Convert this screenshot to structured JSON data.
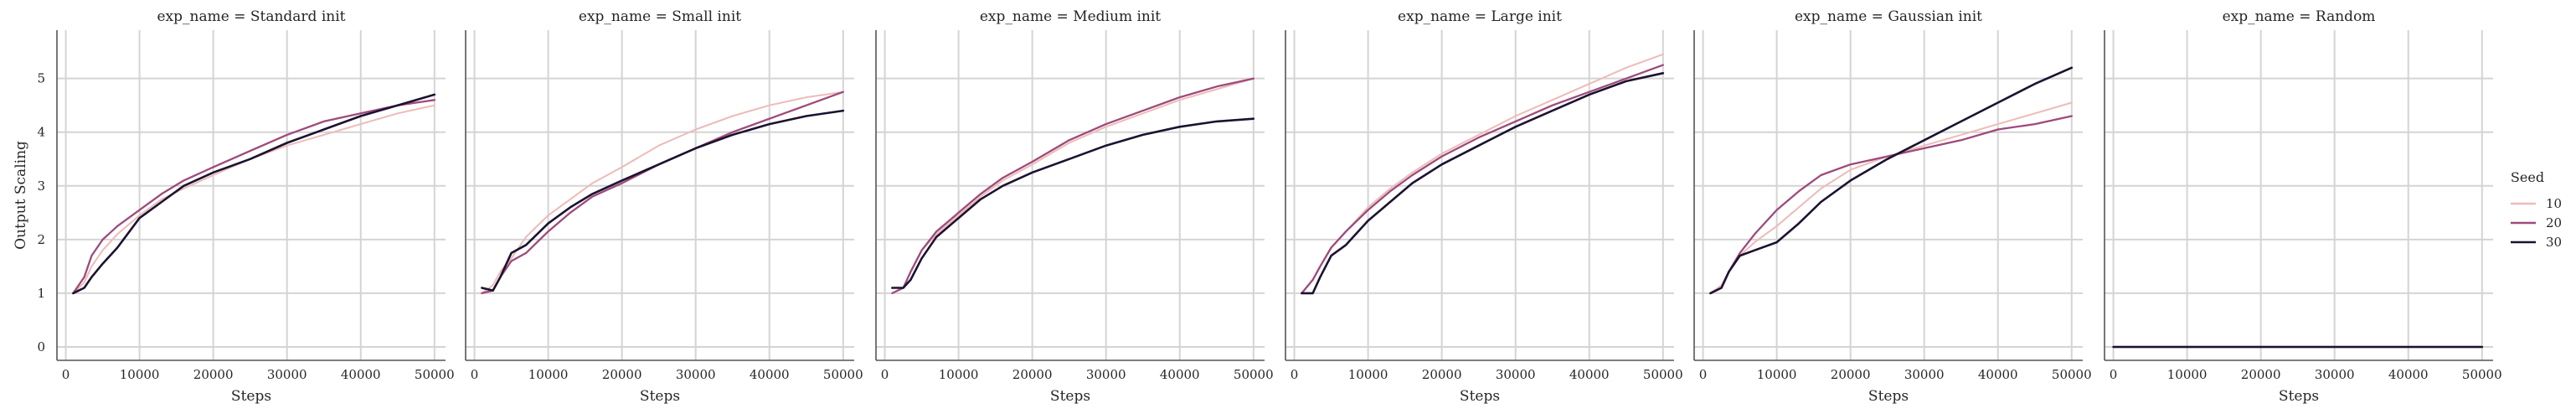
{
  "chart_data": {
    "type": "line",
    "ylabel": "Output Scaling",
    "xlabel": "Steps",
    "xlim": [
      -1200,
      51500
    ],
    "ylim": [
      -0.25,
      5.9
    ],
    "xticks": [
      0,
      10000,
      20000,
      30000,
      40000,
      50000
    ],
    "xtick_labels": [
      "0",
      "10000",
      "20000",
      "30000",
      "40000",
      "50000"
    ],
    "yticks": [
      0,
      1,
      2,
      3,
      4,
      5
    ],
    "ytick_labels": [
      "0",
      "1",
      "2",
      "3",
      "4",
      "5"
    ],
    "grid": true,
    "legend": {
      "title": "Seed",
      "placement": "right",
      "entries": [
        {
          "label": "10",
          "color": "#edbbb8"
        },
        {
          "label": "20",
          "color": "#9e4a7b"
        },
        {
          "label": "30",
          "color": "#1c1230"
        }
      ]
    },
    "panels": [
      {
        "title": "exp_name = Standard init",
        "series": [
          {
            "seed": "10",
            "x": [
              1000,
              2500,
              3500,
              5000,
              7000,
              10000,
              13000,
              16000,
              20000,
              25000,
              30000,
              35000,
              40000,
              45000,
              50000
            ],
            "y": [
              1.0,
              1.2,
              1.5,
              1.8,
              2.1,
              2.45,
              2.75,
              2.95,
              3.2,
              3.5,
              3.75,
              3.95,
              4.15,
              4.35,
              4.5
            ]
          },
          {
            "seed": "20",
            "x": [
              1000,
              2500,
              3500,
              5000,
              7000,
              10000,
              13000,
              16000,
              20000,
              25000,
              30000,
              35000,
              40000,
              45000,
              50000
            ],
            "y": [
              1.0,
              1.3,
              1.7,
              2.0,
              2.25,
              2.55,
              2.85,
              3.1,
              3.35,
              3.65,
              3.95,
              4.2,
              4.35,
              4.5,
              4.6
            ]
          },
          {
            "seed": "30",
            "x": [
              1000,
              2500,
              3500,
              5000,
              7000,
              10000,
              13000,
              16000,
              20000,
              25000,
              30000,
              35000,
              40000,
              45000,
              50000
            ],
            "y": [
              1.0,
              1.1,
              1.3,
              1.55,
              1.85,
              2.4,
              2.7,
              3.0,
              3.25,
              3.5,
              3.8,
              4.05,
              4.3,
              4.5,
              4.7
            ]
          }
        ]
      },
      {
        "title": "exp_name = Small init",
        "series": [
          {
            "seed": "10",
            "x": [
              1000,
              2500,
              3500,
              5000,
              7000,
              10000,
              13000,
              16000,
              20000,
              25000,
              30000,
              35000,
              40000,
              45000,
              50000
            ],
            "y": [
              1.0,
              1.15,
              1.4,
              1.65,
              2.05,
              2.45,
              2.75,
              3.05,
              3.35,
              3.75,
              4.05,
              4.3,
              4.5,
              4.65,
              4.75
            ]
          },
          {
            "seed": "20",
            "x": [
              1000,
              2500,
              3500,
              5000,
              7000,
              10000,
              13000,
              16000,
              20000,
              25000,
              30000,
              35000,
              40000,
              45000,
              50000
            ],
            "y": [
              1.0,
              1.05,
              1.3,
              1.6,
              1.75,
              2.15,
              2.5,
              2.8,
              3.05,
              3.4,
              3.7,
              4.0,
              4.25,
              4.5,
              4.75
            ]
          },
          {
            "seed": "30",
            "x": [
              1000,
              2500,
              3500,
              5000,
              7000,
              10000,
              13000,
              16000,
              20000,
              25000,
              30000,
              35000,
              40000,
              45000,
              50000
            ],
            "y": [
              1.1,
              1.05,
              1.3,
              1.75,
              1.9,
              2.3,
              2.6,
              2.85,
              3.1,
              3.4,
              3.7,
              3.95,
              4.15,
              4.3,
              4.4
            ]
          }
        ]
      },
      {
        "title": "exp_name = Medium init",
        "series": [
          {
            "seed": "10",
            "x": [
              1000,
              2500,
              3500,
              5000,
              7000,
              10000,
              13000,
              16000,
              20000,
              25000,
              30000,
              35000,
              40000,
              45000,
              50000
            ],
            "y": [
              1.0,
              1.1,
              1.4,
              1.8,
              2.1,
              2.45,
              2.8,
              3.1,
              3.4,
              3.8,
              4.1,
              4.35,
              4.6,
              4.8,
              5.0
            ]
          },
          {
            "seed": "20",
            "x": [
              1000,
              2500,
              3500,
              5000,
              7000,
              10000,
              13000,
              16000,
              20000,
              25000,
              30000,
              35000,
              40000,
              45000,
              50000
            ],
            "y": [
              1.0,
              1.1,
              1.4,
              1.8,
              2.15,
              2.5,
              2.85,
              3.15,
              3.45,
              3.85,
              4.15,
              4.4,
              4.65,
              4.85,
              5.0
            ]
          },
          {
            "seed": "30",
            "x": [
              1000,
              2500,
              3500,
              5000,
              7000,
              10000,
              13000,
              16000,
              20000,
              25000,
              30000,
              35000,
              40000,
              45000,
              50000
            ],
            "y": [
              1.1,
              1.1,
              1.25,
              1.65,
              2.05,
              2.4,
              2.75,
              3.0,
              3.25,
              3.5,
              3.75,
              3.95,
              4.1,
              4.2,
              4.25
            ]
          }
        ]
      },
      {
        "title": "exp_name = Large init",
        "series": [
          {
            "seed": "10",
            "x": [
              1000,
              2500,
              3500,
              5000,
              7000,
              10000,
              13000,
              16000,
              20000,
              25000,
              30000,
              35000,
              40000,
              45000,
              50000
            ],
            "y": [
              1.0,
              1.25,
              1.5,
              1.85,
              2.15,
              2.6,
              2.95,
              3.25,
              3.6,
              3.95,
              4.3,
              4.6,
              4.9,
              5.2,
              5.45
            ]
          },
          {
            "seed": "20",
            "x": [
              1000,
              2500,
              3500,
              5000,
              7000,
              10000,
              13000,
              16000,
              20000,
              25000,
              30000,
              35000,
              40000,
              45000,
              50000
            ],
            "y": [
              1.0,
              1.25,
              1.5,
              1.85,
              2.15,
              2.55,
              2.9,
              3.2,
              3.55,
              3.9,
              4.2,
              4.5,
              4.75,
              5.0,
              5.25
            ]
          },
          {
            "seed": "30",
            "x": [
              1000,
              2500,
              3500,
              5000,
              7000,
              10000,
              13000,
              16000,
              20000,
              25000,
              30000,
              35000,
              40000,
              45000,
              50000
            ],
            "y": [
              1.0,
              1.0,
              1.3,
              1.7,
              1.9,
              2.35,
              2.7,
              3.05,
              3.4,
              3.75,
              4.1,
              4.4,
              4.7,
              4.95,
              5.1
            ]
          }
        ]
      },
      {
        "title": "exp_name = Gaussian init",
        "series": [
          {
            "seed": "10",
            "x": [
              1000,
              2500,
              3500,
              5000,
              7000,
              10000,
              13000,
              16000,
              20000,
              25000,
              30000,
              35000,
              40000,
              45000,
              50000
            ],
            "y": [
              1.0,
              1.15,
              1.4,
              1.7,
              1.95,
              2.25,
              2.6,
              2.95,
              3.3,
              3.55,
              3.75,
              3.95,
              4.15,
              4.35,
              4.55
            ]
          },
          {
            "seed": "20",
            "x": [
              1000,
              2500,
              3500,
              5000,
              7000,
              10000,
              13000,
              16000,
              20000,
              25000,
              30000,
              35000,
              40000,
              45000,
              50000
            ],
            "y": [
              1.0,
              1.1,
              1.4,
              1.75,
              2.1,
              2.55,
              2.9,
              3.2,
              3.4,
              3.55,
              3.7,
              3.85,
              4.05,
              4.15,
              4.3
            ]
          },
          {
            "seed": "30",
            "x": [
              1000,
              2500,
              3500,
              5000,
              7000,
              10000,
              13000,
              16000,
              20000,
              25000,
              30000,
              35000,
              40000,
              45000,
              50000
            ],
            "y": [
              1.0,
              1.1,
              1.4,
              1.7,
              1.8,
              1.95,
              2.3,
              2.7,
              3.1,
              3.5,
              3.85,
              4.2,
              4.55,
              4.9,
              5.2
            ]
          }
        ]
      },
      {
        "title": "exp_name = Random",
        "series": [
          {
            "seed": "10",
            "x": [
              0,
              50000
            ],
            "y": [
              0,
              0
            ]
          },
          {
            "seed": "20",
            "x": [
              0,
              50000
            ],
            "y": [
              0,
              0
            ]
          },
          {
            "seed": "30",
            "x": [
              0,
              50000
            ],
            "y": [
              0,
              0
            ]
          }
        ]
      }
    ]
  }
}
